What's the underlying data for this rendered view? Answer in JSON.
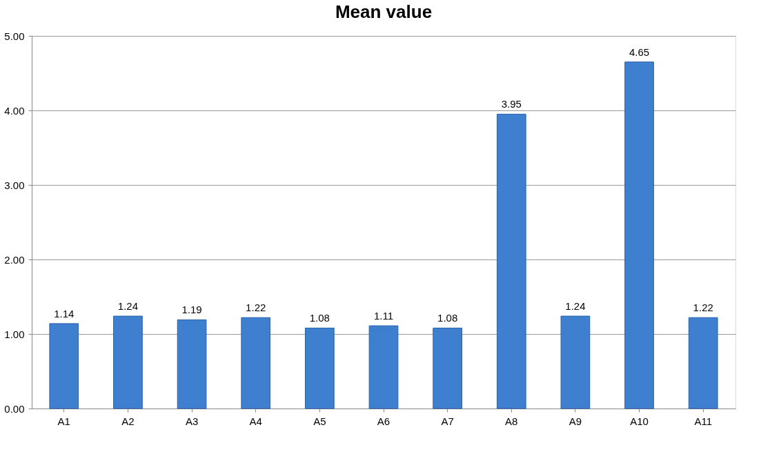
{
  "chart_data": {
    "type": "bar",
    "title": "Mean value",
    "categories": [
      "A1",
      "A2",
      "A3",
      "A4",
      "A5",
      "A6",
      "A7",
      "A8",
      "A9",
      "A10",
      "A11"
    ],
    "values": [
      1.14,
      1.24,
      1.19,
      1.22,
      1.08,
      1.11,
      1.08,
      3.95,
      1.24,
      4.65,
      1.22
    ],
    "color": "#3f7fd0",
    "ylim": [
      0,
      5
    ],
    "yticks": [
      {
        "value": 0,
        "label": "0.00"
      },
      {
        "value": 1,
        "label": "1.00"
      },
      {
        "value": 2,
        "label": "2.00"
      },
      {
        "value": 3,
        "label": "3.00"
      },
      {
        "value": 4,
        "label": "4.00"
      },
      {
        "value": 5,
        "label": "5.00"
      }
    ],
    "grid": "y",
    "data_labels": true
  }
}
